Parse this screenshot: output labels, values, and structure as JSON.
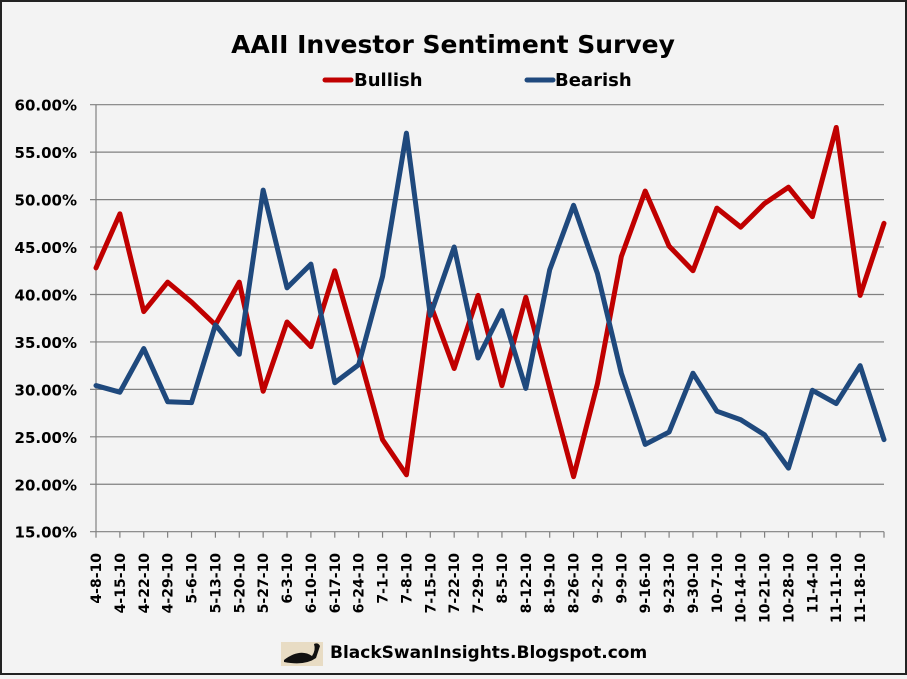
{
  "chart_data": {
    "type": "line",
    "title": "AAII Investor Sentiment Survey",
    "xlabel": "",
    "ylabel": "",
    "ylim": [
      15,
      60
    ],
    "yticks": [
      "15.00%",
      "20.00%",
      "25.00%",
      "30.00%",
      "35.00%",
      "40.00%",
      "45.00%",
      "50.00%",
      "55.00%",
      "60.00%"
    ],
    "grid": true,
    "legend_position": "top",
    "categories": [
      "4-8-10",
      "4-15-10",
      "4-22-10",
      "4-29-10",
      "5-6-10",
      "5-13-10",
      "5-20-10",
      "5-27-10",
      "6-3-10",
      "6-10-10",
      "6-17-10",
      "6-24-10",
      "7-1-10",
      "7-8-10",
      "7-15-10",
      "7-22-10",
      "7-29-10",
      "8-5-10",
      "8-12-10",
      "8-19-10",
      "8-26-10",
      "9-2-10",
      "9-9-10",
      "9-16-10",
      "9-23-10",
      "9-30-10",
      "10-7-10",
      "10-14-10",
      "10-21-10",
      "10-28-10",
      "11-4-10",
      "11-11-10",
      "11-18-10",
      ""
    ],
    "series": [
      {
        "name": "Bullish",
        "color": "#c00000",
        "values": [
          42.8,
          48.5,
          38.2,
          41.3,
          39.2,
          36.8,
          41.3,
          29.8,
          37.1,
          34.5,
          42.5,
          33.8,
          24.7,
          21.0,
          39.0,
          32.2,
          39.9,
          30.4,
          39.7,
          30.2,
          20.8,
          30.6,
          44.0,
          50.9,
          45.1,
          42.5,
          49.1,
          47.1,
          49.6,
          51.3,
          48.2,
          57.6,
          39.9,
          47.5
        ]
      },
      {
        "name": "Bearish",
        "color": "#1f497d",
        "values": [
          30.4,
          29.7,
          34.3,
          28.7,
          28.6,
          36.8,
          33.7,
          51.0,
          40.7,
          43.2,
          30.7,
          32.6,
          41.9,
          57.0,
          37.8,
          45.0,
          33.3,
          38.3,
          30.1,
          42.6,
          49.4,
          42.2,
          31.7,
          24.2,
          25.5,
          31.7,
          27.7,
          26.8,
          25.2,
          21.7,
          29.9,
          28.5,
          32.5,
          24.7
        ]
      }
    ]
  },
  "footer": {
    "text": "BlackSwanInsights.Blogspot.com",
    "logo_icon": "black-swan-logo"
  }
}
